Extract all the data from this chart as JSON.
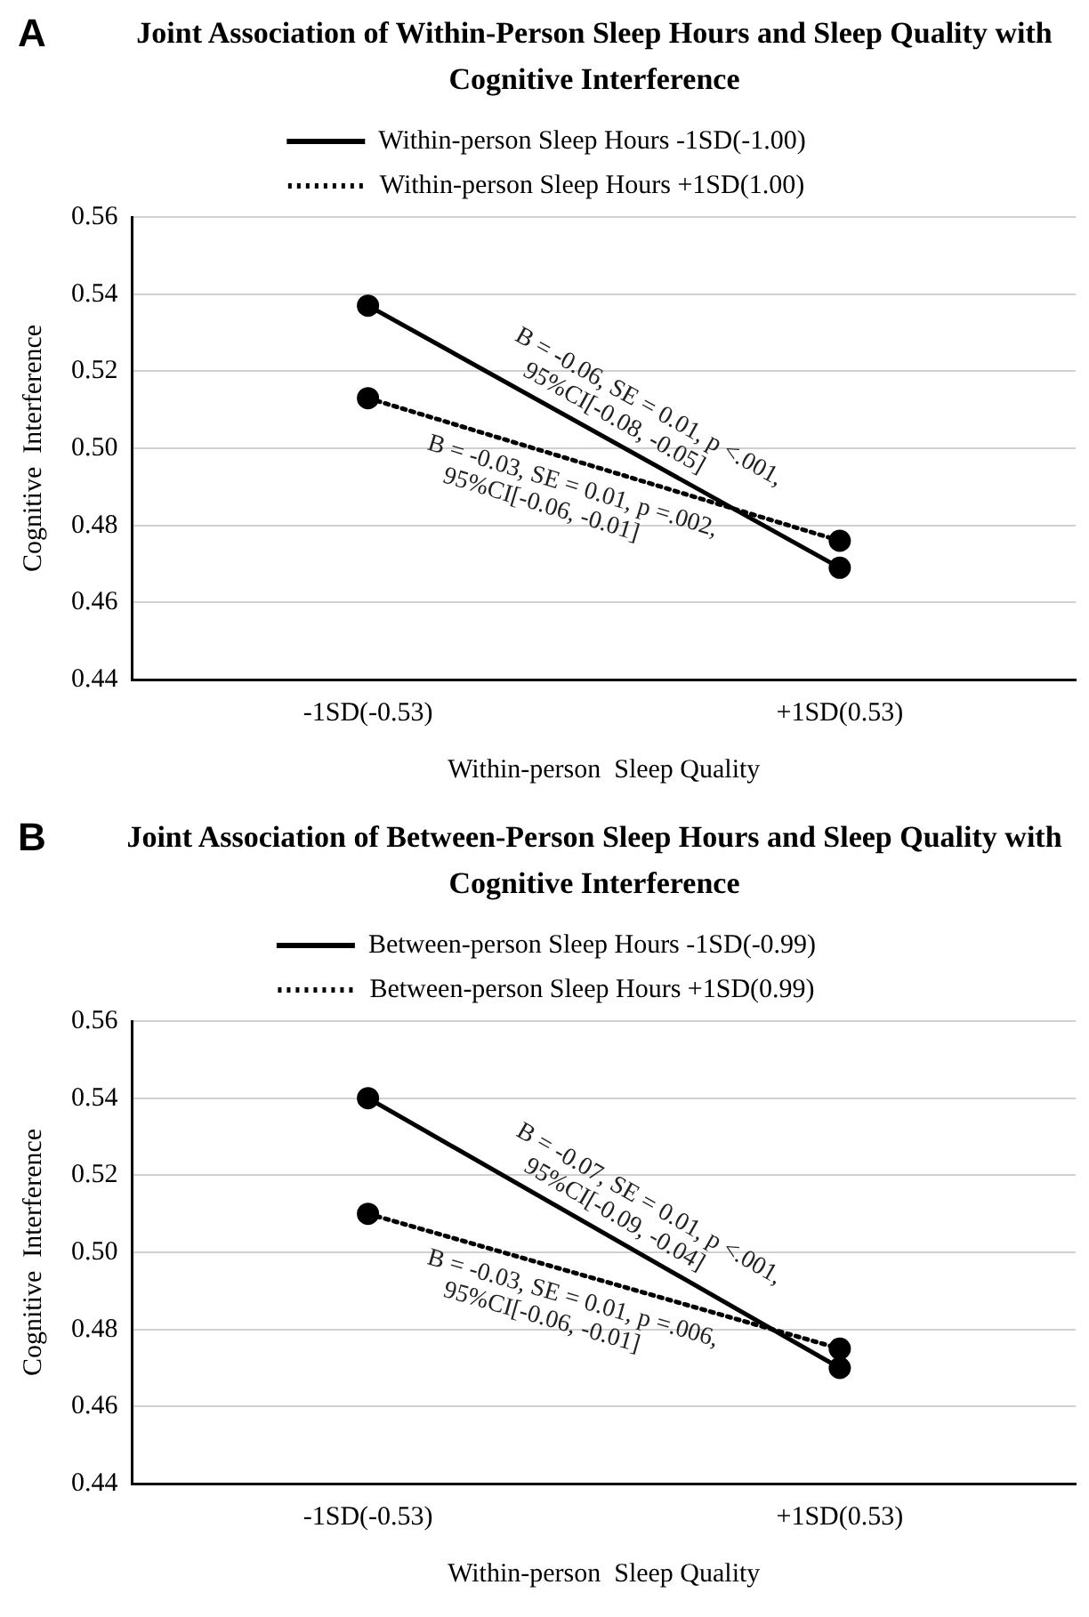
{
  "chart_data": [
    {
      "type": "line",
      "title": "Joint Association of Within-Person Sleep Hours and Sleep Quality with Cognitive Interference",
      "xlabel": "Within-person  Sleep Quality",
      "ylabel": "Cognitive  Interference",
      "categories": [
        "-1SD(-0.53)",
        "+1SD(0.53)"
      ],
      "series": [
        {
          "name": "Within-person Sleep Hours -1SD(-1.00)",
          "color": "#000000",
          "values": [
            0.537,
            0.469
          ],
          "line_style": "solid"
        },
        {
          "name": "Within-person Sleep Hours +1SD(1.00)",
          "color": "#000000",
          "values": [
            0.513,
            0.476
          ],
          "line_style": "dotted"
        }
      ],
      "ylim": [
        0.44,
        0.56
      ],
      "yticks": [
        {
          "value": 0.44,
          "label": "0.44"
        },
        {
          "value": 0.46,
          "label": "0.46"
        },
        {
          "value": 0.48,
          "label": "0.48"
        },
        {
          "value": 0.5,
          "label": "0.50"
        },
        {
          "value": 0.52,
          "label": "0.52"
        },
        {
          "value": 0.54,
          "label": "0.54"
        },
        {
          "value": 0.56,
          "label": "0.56"
        }
      ],
      "grid": "y",
      "legend": "top",
      "marker": "circle",
      "annotations": [
        "A",
        "B = -0.06, SE = 0.01, p <.001,\n95%CI[-0.08, -0.05]",
        "B = -0.03, SE = 0.01, p =.002,\n95%CI[-0.06, -0.01]"
      ]
    },
    {
      "type": "line",
      "title": "Joint Association of Between-Person Sleep Hours and Sleep Quality with Cognitive Interference",
      "xlabel": "Within-person  Sleep Quality",
      "ylabel": "Cognitive  Interference",
      "categories": [
        "-1SD(-0.53)",
        "+1SD(0.53)"
      ],
      "series": [
        {
          "name": "Between-person Sleep Hours -1SD(-0.99)",
          "color": "#000000",
          "values": [
            0.54,
            0.47
          ],
          "line_style": "solid"
        },
        {
          "name": "Between-person Sleep Hours +1SD(0.99)",
          "color": "#000000",
          "values": [
            0.51,
            0.475
          ],
          "line_style": "dotted"
        }
      ],
      "ylim": [
        0.44,
        0.56
      ],
      "yticks": [
        {
          "value": 0.44,
          "label": "0.44"
        },
        {
          "value": 0.46,
          "label": "0.46"
        },
        {
          "value": 0.48,
          "label": "0.48"
        },
        {
          "value": 0.5,
          "label": "0.50"
        },
        {
          "value": 0.52,
          "label": "0.52"
        },
        {
          "value": 0.54,
          "label": "0.54"
        },
        {
          "value": 0.56,
          "label": "0.56"
        }
      ],
      "grid": "y",
      "legend": "top",
      "marker": "circle",
      "annotations": [
        "B",
        "B = -0.07, SE = 0.01, p <.001,\n95%CI[-0.09, -0.04]",
        "B = -0.03, SE = 0.01, p =.006,\n95%CI[-0.06, -0.01]"
      ]
    }
  ]
}
